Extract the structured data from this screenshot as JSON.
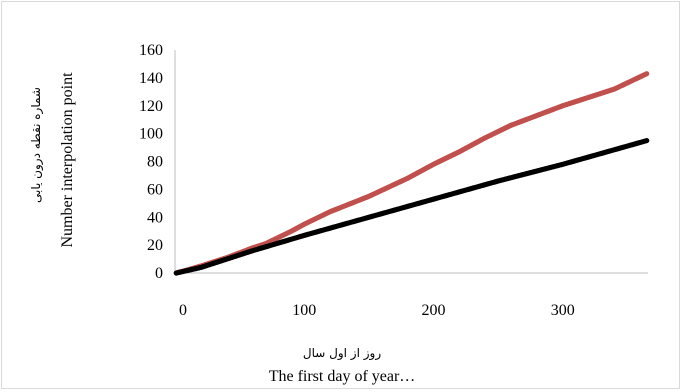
{
  "chart_data": {
    "type": "scatter",
    "xlabel_fa": "روز از اول سال",
    "xlabel": "The first day of year…",
    "ylabel_fa": "شماره نقطه درون یابی",
    "ylabel": "Number interpolation point",
    "xlim": [
      0,
      366
    ],
    "ylim": [
      0,
      160
    ],
    "xticks": [
      "100",
      "200",
      "300"
    ],
    "xtick_values": [
      100,
      200,
      300
    ],
    "yticks": [
      "0",
      "20",
      "40",
      "60",
      "80",
      "100",
      "120",
      "140",
      "160"
    ],
    "ytick_values": [
      0,
      20,
      40,
      60,
      80,
      100,
      120,
      140,
      160
    ],
    "x_origin_label": "0",
    "grid": false,
    "series": [
      {
        "color": "#c0504d",
        "x": [
          1,
          20,
          40,
          60,
          70,
          90,
          100,
          120,
          150,
          180,
          200,
          220,
          240,
          260,
          280,
          300,
          320,
          340,
          365
        ],
        "y": [
          0,
          5,
          11,
          18,
          21,
          30,
          35,
          44,
          55,
          68,
          78,
          87,
          97,
          106,
          113,
          120,
          126,
          132,
          143
        ]
      },
      {
        "color": "#000000",
        "x": [
          1,
          20,
          40,
          60,
          100,
          150,
          200,
          250,
          300,
          365
        ],
        "y": [
          0,
          4,
          10,
          16,
          27,
          40,
          53,
          66,
          78,
          95
        ]
      }
    ]
  }
}
